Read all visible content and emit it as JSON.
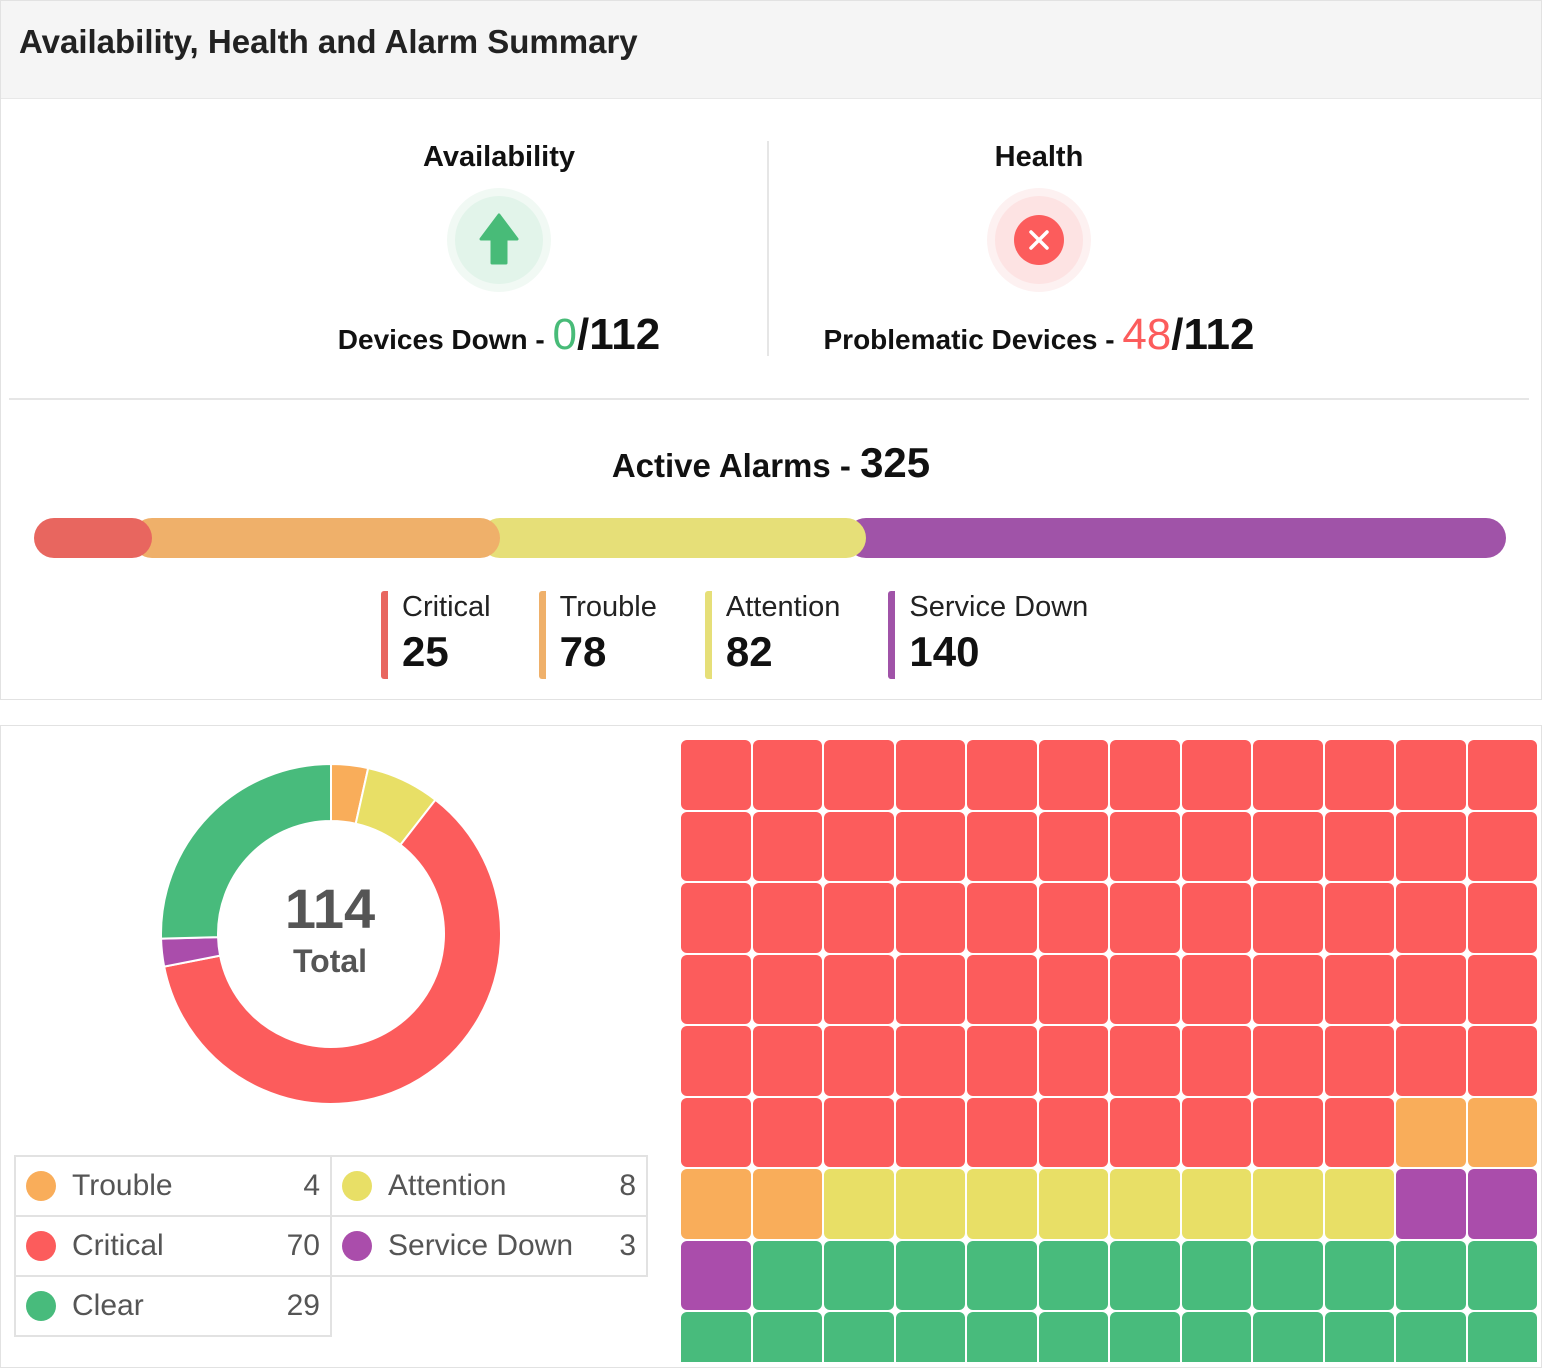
{
  "header": {
    "title": "Availability, Health and Alarm Summary"
  },
  "availability": {
    "title": "Availability",
    "label": "Devices Down - ",
    "value": "0",
    "total": "/112",
    "icon": "arrow-up-icon",
    "color": "#48bb78"
  },
  "health": {
    "title": "Health",
    "label": "Problematic Devices - ",
    "value": "48",
    "total": "/112",
    "icon": "close-circle-icon",
    "color": "#fc5c5c"
  },
  "alarms": {
    "title": "Active Alarms - ",
    "total": "325",
    "items": [
      {
        "name": "Critical",
        "value": "25",
        "color": "#e8665f"
      },
      {
        "name": "Trouble",
        "value": "78",
        "color": "#efb06a"
      },
      {
        "name": "Attention",
        "value": "82",
        "color": "#e6df78"
      },
      {
        "name": "Service Down",
        "value": "140",
        "color": "#a053a8"
      }
    ]
  },
  "devices": {
    "total": "114",
    "total_label": "Total",
    "items": [
      {
        "name": "Trouble",
        "value": 4,
        "color": "#f9ad5a"
      },
      {
        "name": "Attention",
        "value": 8,
        "color": "#e8df66"
      },
      {
        "name": "Critical",
        "value": 70,
        "color": "#fc5c5c"
      },
      {
        "name": "Service Down",
        "value": 3,
        "color": "#aa4dab"
      },
      {
        "name": "Clear",
        "value": 29,
        "color": "#48bb7c"
      }
    ],
    "legend": [
      {
        "name": "Trouble",
        "value": "4",
        "color": "#f9ad5a"
      },
      {
        "name": "Attention",
        "value": "8",
        "color": "#e8df66"
      },
      {
        "name": "Critical",
        "value": "70",
        "color": "#fc5c5c"
      },
      {
        "name": "Service Down",
        "value": "3",
        "color": "#aa4dab"
      },
      {
        "name": "Clear",
        "value": "29",
        "color": "#48bb7c"
      }
    ],
    "waffle_order": [
      "Critical",
      "Trouble",
      "Attention",
      "Service Down",
      "Clear"
    ]
  }
}
